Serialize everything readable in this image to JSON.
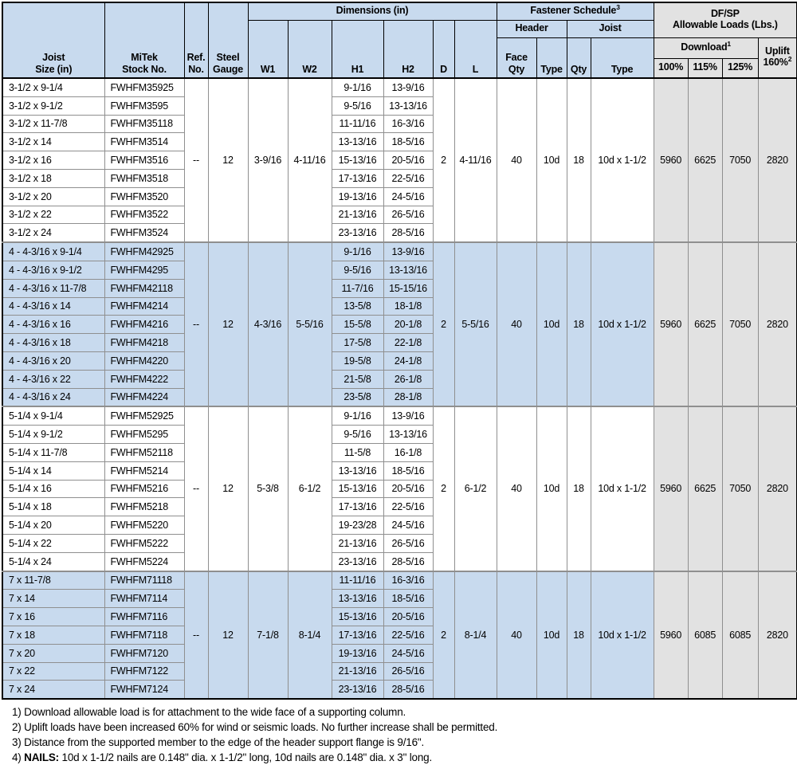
{
  "table": {
    "header": {
      "joist_l1": "Joist",
      "joist_l2": "Size (in)",
      "mitek_l1": "MiTek",
      "mitek_l2": "Stock No.",
      "ref_l1": "Ref.",
      "ref_l2": "No.",
      "gauge_l1": "Steel",
      "gauge_l2": "Gauge",
      "dimensions": "Dimensions (in)",
      "w1": "W1",
      "w2": "W2",
      "h1": "H1",
      "h2": "H2",
      "d": "D",
      "l": "L",
      "fastener": "Fastener Schedule",
      "fastener_sup": "3",
      "header_group": "Header",
      "joist_group": "Joist",
      "face_l1": "Face",
      "face_l2": "Qty",
      "header_type": "Type",
      "joist_qty": "Qty",
      "joist_type": "Type",
      "dfsp_l1": "DF/SP",
      "dfsp_l2": "Allowable Loads (Lbs.)",
      "download": "Download",
      "download_sup": "1",
      "p100": "100%",
      "p115": "115%",
      "p125": "125%",
      "uplift_l1": "Uplift",
      "uplift_l2": "160%",
      "uplift_sup": "2"
    },
    "colors": {
      "header_blue": "#c8daee",
      "row_blue": "#c8daee",
      "load_gray": "#e2e2e2",
      "grid_gray": "#8f8f8f",
      "border_black": "#000000"
    },
    "groups": [
      {
        "shade": "white",
        "ref": "--",
        "gauge": "12",
        "w1": "3-9/16",
        "w2": "4-11/16",
        "d": "2",
        "l": "4-11/16",
        "face_qty": "40",
        "header_type": "10d",
        "joist_qty": "18",
        "joist_type": "10d x 1-1/2",
        "load_100": "5960",
        "load_115": "6625",
        "load_125": "7050",
        "uplift": "2820",
        "rows": [
          {
            "size": "3-1/2 x 9-1/4",
            "stock": "FWHFM35925",
            "h1": "9-1/16",
            "h2": "13-9/16"
          },
          {
            "size": "3-1/2 x 9-1/2",
            "stock": "FWHFM3595",
            "h1": "9-5/16",
            "h2": "13-13/16"
          },
          {
            "size": "3-1/2 x 11-7/8",
            "stock": "FWHFM35118",
            "h1": "11-11/16",
            "h2": "16-3/16"
          },
          {
            "size": "3-1/2 x 14",
            "stock": "FWHFM3514",
            "h1": "13-13/16",
            "h2": "18-5/16"
          },
          {
            "size": "3-1/2 x 16",
            "stock": "FWHFM3516",
            "h1": "15-13/16",
            "h2": "20-5/16"
          },
          {
            "size": "3-1/2 x 18",
            "stock": "FWHFM3518",
            "h1": "17-13/16",
            "h2": "22-5/16"
          },
          {
            "size": "3-1/2 x 20",
            "stock": "FWHFM3520",
            "h1": "19-13/16",
            "h2": "24-5/16"
          },
          {
            "size": "3-1/2 x 22",
            "stock": "FWHFM3522",
            "h1": "21-13/16",
            "h2": "26-5/16"
          },
          {
            "size": "3-1/2 x 24",
            "stock": "FWHFM3524",
            "h1": "23-13/16",
            "h2": "28-5/16"
          }
        ]
      },
      {
        "shade": "blue",
        "ref": "--",
        "gauge": "12",
        "w1": "4-3/16",
        "w2": "5-5/16",
        "d": "2",
        "l": "5-5/16",
        "face_qty": "40",
        "header_type": "10d",
        "joist_qty": "18",
        "joist_type": "10d x 1-1/2",
        "load_100": "5960",
        "load_115": "6625",
        "load_125": "7050",
        "uplift": "2820",
        "rows": [
          {
            "size": "4 - 4-3/16 x 9-1/4",
            "stock": "FWHFM42925",
            "h1": "9-1/16",
            "h2": "13-9/16"
          },
          {
            "size": "4 - 4-3/16 x 9-1/2",
            "stock": "FWHFM4295",
            "h1": "9-5/16",
            "h2": "13-13/16"
          },
          {
            "size": "4 - 4-3/16 x 11-7/8",
            "stock": "FWHFM42118",
            "h1": "11-7/16",
            "h2": "15-15/16"
          },
          {
            "size": "4 - 4-3/16 x 14",
            "stock": "FWHFM4214",
            "h1": "13-5/8",
            "h2": "18-1/8"
          },
          {
            "size": "4 - 4-3/16 x 16",
            "stock": "FWHFM4216",
            "h1": "15-5/8",
            "h2": "20-1/8"
          },
          {
            "size": "4 - 4-3/16 x 18",
            "stock": "FWHFM4218",
            "h1": "17-5/8",
            "h2": "22-1/8"
          },
          {
            "size": "4 - 4-3/16 x 20",
            "stock": "FWHFM4220",
            "h1": "19-5/8",
            "h2": "24-1/8"
          },
          {
            "size": "4 - 4-3/16 x 22",
            "stock": "FWHFM4222",
            "h1": "21-5/8",
            "h2": "26-1/8"
          },
          {
            "size": "4 - 4-3/16 x 24",
            "stock": "FWHFM4224",
            "h1": "23-5/8",
            "h2": "28-1/8"
          }
        ]
      },
      {
        "shade": "white",
        "ref": "--",
        "gauge": "12",
        "w1": "5-3/8",
        "w2": "6-1/2",
        "d": "2",
        "l": "6-1/2",
        "face_qty": "40",
        "header_type": "10d",
        "joist_qty": "18",
        "joist_type": "10d x 1-1/2",
        "load_100": "5960",
        "load_115": "6625",
        "load_125": "7050",
        "uplift": "2820",
        "rows": [
          {
            "size": "5-1/4 x 9-1/4",
            "stock": "FWHFM52925",
            "h1": "9-1/16",
            "h2": "13-9/16"
          },
          {
            "size": "5-1/4 x 9-1/2",
            "stock": "FWHFM5295",
            "h1": "9-5/16",
            "h2": "13-13/16"
          },
          {
            "size": "5-1/4 x 11-7/8",
            "stock": "FWHFM52118",
            "h1": "11-5/8",
            "h2": "16-1/8"
          },
          {
            "size": "5-1/4 x 14",
            "stock": "FWHFM5214",
            "h1": "13-13/16",
            "h2": "18-5/16"
          },
          {
            "size": "5-1/4 x 16",
            "stock": "FWHFM5216",
            "h1": "15-13/16",
            "h2": "20-5/16"
          },
          {
            "size": "5-1/4 x 18",
            "stock": "FWHFM5218",
            "h1": "17-13/16",
            "h2": "22-5/16"
          },
          {
            "size": "5-1/4 x 20",
            "stock": "FWHFM5220",
            "h1": "19-23/28",
            "h2": "24-5/16"
          },
          {
            "size": "5-1/4 x 22",
            "stock": "FWHFM5222",
            "h1": "21-13/16",
            "h2": "26-5/16"
          },
          {
            "size": "5-1/4 x 24",
            "stock": "FWHFM5224",
            "h1": "23-13/16",
            "h2": "28-5/16"
          }
        ]
      },
      {
        "shade": "blue",
        "ref": "--",
        "gauge": "12",
        "w1": "7-1/8",
        "w2": "8-1/4",
        "d": "2",
        "l": "8-1/4",
        "face_qty": "40",
        "header_type": "10d",
        "joist_qty": "18",
        "joist_type": "10d x 1-1/2",
        "load_100": "5960",
        "load_115": "6085",
        "load_125": "6085",
        "uplift": "2820",
        "rows": [
          {
            "size": "7 x 11-7/8",
            "stock": "FWHFM71118",
            "h1": "11-11/16",
            "h2": "16-3/16"
          },
          {
            "size": "7 x 14",
            "stock": "FWHFM7114",
            "h1": "13-13/16",
            "h2": "18-5/16"
          },
          {
            "size": "7 x 16",
            "stock": "FWHFM7116",
            "h1": "15-13/16",
            "h2": "20-5/16"
          },
          {
            "size": "7 x 18",
            "stock": "FWHFM7118",
            "h1": "17-13/16",
            "h2": "22-5/16"
          },
          {
            "size": "7 x 20",
            "stock": "FWHFM7120",
            "h1": "19-13/16",
            "h2": "24-5/16"
          },
          {
            "size": "7 x 22",
            "stock": "FWHFM7122",
            "h1": "21-13/16",
            "h2": "26-5/16"
          },
          {
            "size": "7 x 24",
            "stock": "FWHFM7124",
            "h1": "23-13/16",
            "h2": "28-5/16"
          }
        ]
      }
    ]
  },
  "notes": [
    {
      "num": "1)",
      "bold": "",
      "text": "Download allowable load is for attachment to the wide face of a supporting column."
    },
    {
      "num": "2)",
      "bold": "",
      "text": "Uplift loads have been increased 60% for wind or seismic loads. No further increase shall be permitted."
    },
    {
      "num": "3)",
      "bold": "",
      "text": "Distance from the supported member to the edge of the header support flange is 9/16\"."
    },
    {
      "num": "4)",
      "bold": "NAILS:",
      "text": " 10d x 1-1/2 nails are 0.148\" dia. x 1-1/2\" long, 10d nails are 0.148\" dia. x 3\" long."
    }
  ]
}
